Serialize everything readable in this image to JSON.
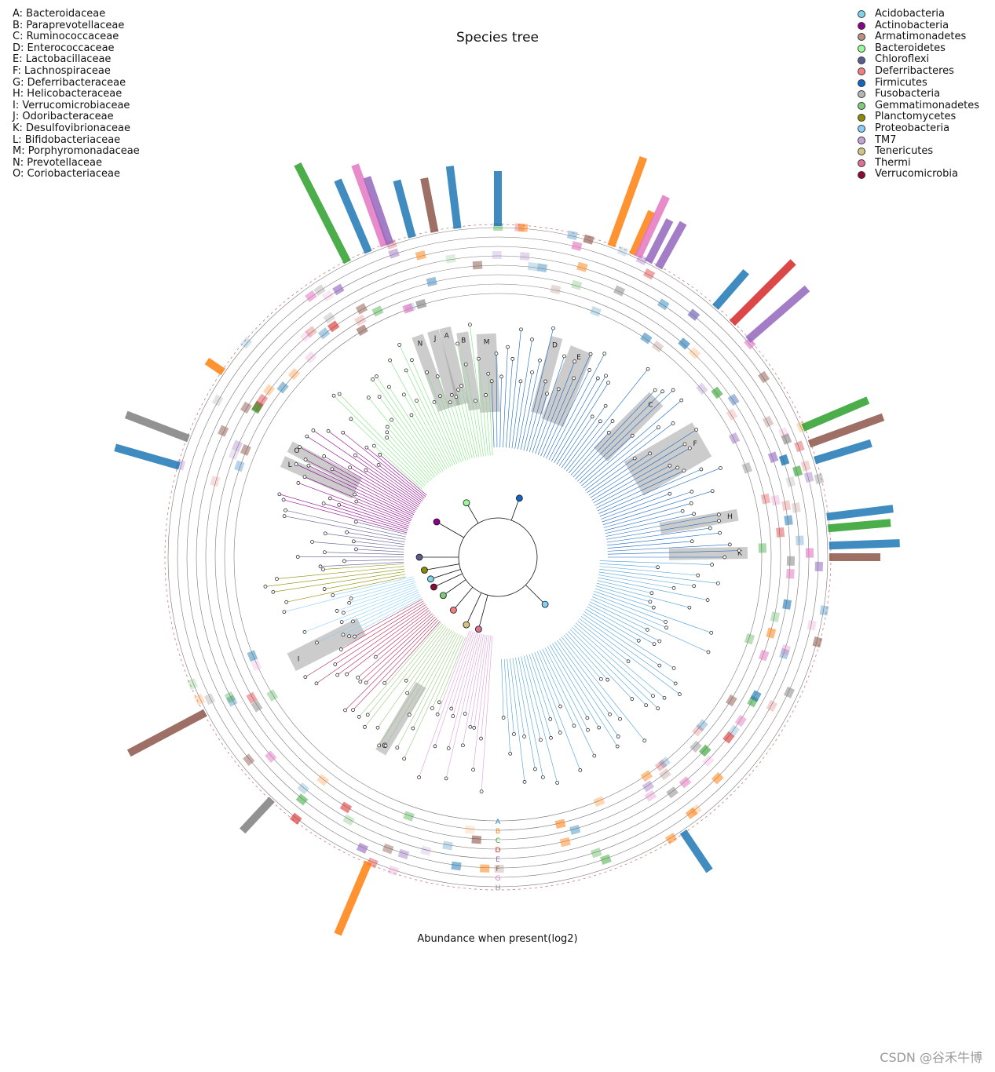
{
  "title": "Species tree",
  "xlabel": "Abundance when present(log2)",
  "watermark": "CSDN @谷禾牛博",
  "families": [
    {
      "code": "A",
      "name": "Bacteroidaceae",
      "label": "A: Bacteroidaceae"
    },
    {
      "code": "B",
      "name": "Paraprevotellaceae",
      "label": "B: Paraprevotellaceae"
    },
    {
      "code": "C",
      "name": "Ruminococcaceae",
      "label": "C: Ruminococcaceae"
    },
    {
      "code": "D",
      "name": "Enterococcaceae",
      "label": "D: Enterococcaceae"
    },
    {
      "code": "E",
      "name": "Lactobacillaceae",
      "label": "E: Lactobacillaceae"
    },
    {
      "code": "F",
      "name": "Lachnospiraceae",
      "label": "F: Lachnospiraceae"
    },
    {
      "code": "G",
      "name": "Deferribacteraceae",
      "label": "G: Deferribacteraceae"
    },
    {
      "code": "H",
      "name": "Helicobacteraceae",
      "label": "H: Helicobacteraceae"
    },
    {
      "code": "I",
      "name": "Verrucomicrobiaceae",
      "label": "I: Verrucomicrobiaceae"
    },
    {
      "code": "J",
      "name": "Odoribacteraceae",
      "label": "J: Odoribacteraceae"
    },
    {
      "code": "K",
      "name": "Desulfovibrionaceae",
      "label": "K: Desulfovibrionaceae"
    },
    {
      "code": "L",
      "name": "Bifidobacteriaceae",
      "label": "L: Bifidobacteriaceae"
    },
    {
      "code": "M",
      "name": "Porphyromonadaceae",
      "label": "M: Porphyromonadaceae"
    },
    {
      "code": "N",
      "name": "Prevotellaceae",
      "label": "N: Prevotellaceae"
    },
    {
      "code": "O",
      "name": "Coriobacteriaceae",
      "label": "O: Coriobacteriaceae"
    }
  ],
  "phyla": [
    {
      "name": "Acidobacteria",
      "color": "#7fd3e6"
    },
    {
      "name": "Actinobacteria",
      "color": "#8b008b"
    },
    {
      "name": "Armatimonadetes",
      "color": "#bc8f7f"
    },
    {
      "name": "Bacteroidetes",
      "color": "#98fb98"
    },
    {
      "name": "Chloroflexi",
      "color": "#5b5b8f"
    },
    {
      "name": "Deferribacteres",
      "color": "#f08080"
    },
    {
      "name": "Firmicutes",
      "color": "#1565c0"
    },
    {
      "name": "Fusobacteria",
      "color": "#b5b5b5"
    },
    {
      "name": "Gemmatimonadetes",
      "color": "#7ccd7c"
    },
    {
      "name": "Planctomycetes",
      "color": "#8b8b00"
    },
    {
      "name": "Proteobacteria",
      "color": "#87cefa"
    },
    {
      "name": "TM7",
      "color": "#c3a3d3"
    },
    {
      "name": "Tenericutes",
      "color": "#d2c482"
    },
    {
      "name": "Thermi",
      "color": "#db7093"
    },
    {
      "name": "Verrucomicrobia",
      "color": "#8b0a3a"
    }
  ],
  "ring_labels": [
    "A",
    "B",
    "C",
    "D",
    "E",
    "F",
    "G",
    "H"
  ],
  "ring_colors": [
    "#1f77b4",
    "#ff7f0e",
    "#2ca02c",
    "#d62728",
    "#9467bd",
    "#8c564b",
    "#e377c2",
    "#7f7f7f"
  ],
  "clade_labels": [
    "N",
    "J",
    "A",
    "B",
    "M",
    "D",
    "E",
    "C",
    "F",
    "H",
    "K",
    "G",
    "I",
    "O",
    "L"
  ]
}
